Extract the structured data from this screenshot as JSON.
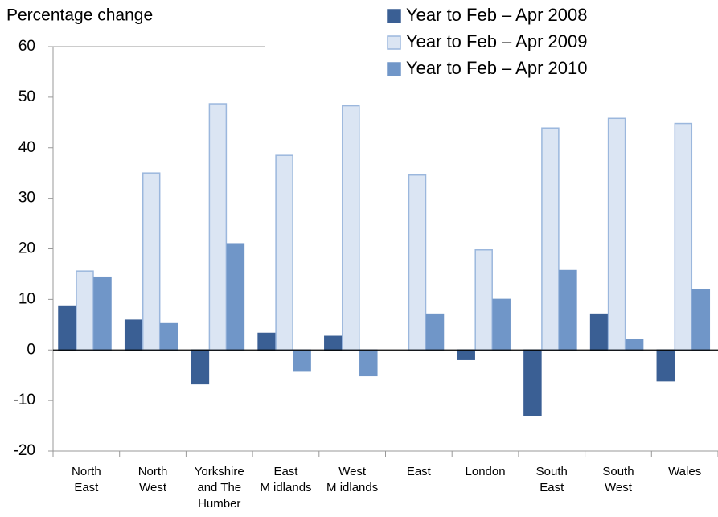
{
  "chart_data": {
    "type": "bar",
    "y_axis_title": "Percentage change",
    "categories": [
      [
        "North",
        "East"
      ],
      [
        "North",
        "West"
      ],
      [
        "Yorkshire",
        "and The",
        "Humber"
      ],
      [
        "East",
        "M idlands"
      ],
      [
        "West",
        "M idlands"
      ],
      [
        "East"
      ],
      [
        "London"
      ],
      [
        "South",
        "East"
      ],
      [
        "South",
        "West"
      ],
      [
        "Wales"
      ]
    ],
    "series": [
      {
        "name": "Year to Feb – Apr 2008",
        "color": "#3a5f94",
        "values": [
          8.7,
          5.9,
          -6.7,
          3.3,
          2.7,
          0,
          -1.9,
          -13,
          7.1,
          -6.1
        ]
      },
      {
        "name": "Year to Feb – Apr 2009",
        "color": "#dbe5f3",
        "values": [
          15.6,
          35,
          48.7,
          38.5,
          48.3,
          34.6,
          19.8,
          43.9,
          45.8,
          44.8
        ]
      },
      {
        "name": "Year to Feb – Apr 2010",
        "color": "#7096c8",
        "values": [
          14.4,
          5.2,
          21,
          -4.2,
          -5.1,
          7.1,
          10,
          15.7,
          2.0,
          11.9
        ]
      }
    ],
    "ylim": [
      -20,
      60
    ],
    "yticks": [
      -20,
      -10,
      0,
      10,
      20,
      30,
      40,
      50,
      60
    ],
    "grid": false,
    "legend": "top-right"
  }
}
